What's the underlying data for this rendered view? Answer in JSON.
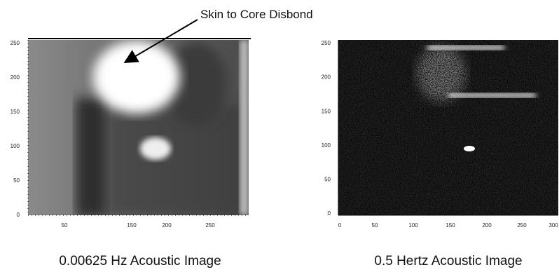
{
  "annotation": "Skin to Core Disbond",
  "panels": [
    {
      "caption": "0.00625 Hz Acoustic Image",
      "x_ticks": [
        "50",
        "150",
        "200",
        "250"
      ],
      "y_ticks": [
        "250",
        "200",
        "150",
        "100",
        "50",
        "0"
      ]
    },
    {
      "caption": "0.5 Hertz Acoustic Image",
      "x_ticks": [
        "0",
        "50",
        "100",
        "150",
        "200",
        "250",
        "300"
      ],
      "y_ticks": [
        "250",
        "200",
        "150",
        "100",
        "50",
        "0"
      ]
    }
  ]
}
